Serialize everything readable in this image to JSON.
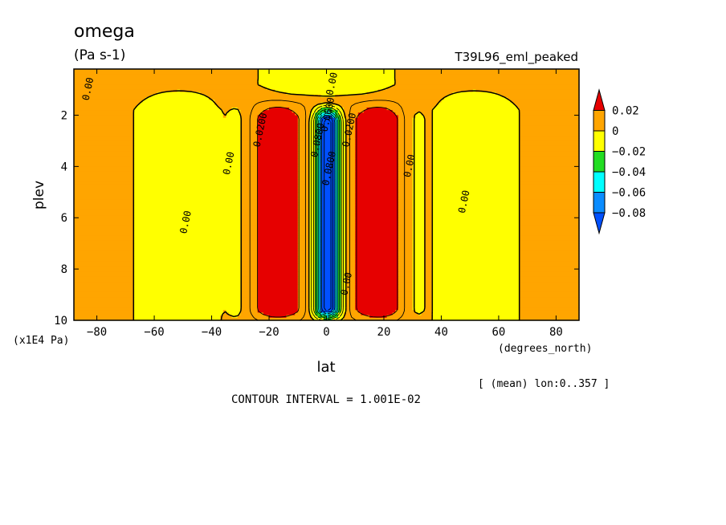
{
  "chart_data": {
    "type": "heatmap",
    "title": "omega",
    "units": "(Pa s-1)",
    "experiment": "T39L96_eml_peaked",
    "xlabel": "lat",
    "xunits": "(degrees_north)",
    "ylabel": "plev",
    "yunits": "(x1E4 Pa)",
    "xlim": [
      -88,
      88
    ],
    "ylim": [
      0.2,
      10
    ],
    "yinverted": true,
    "xticks": [
      -80,
      -60,
      -40,
      -20,
      0,
      20,
      40,
      60,
      80
    ],
    "xtick_labels": [
      "−80",
      "−60",
      "−40",
      "−20",
      "0",
      "20",
      "40",
      "60",
      "80"
    ],
    "yticks": [
      2,
      4,
      6,
      8,
      10
    ],
    "ytick_labels": [
      "2",
      "4",
      "6",
      "8",
      "10"
    ],
    "averaging_note": "[ (mean) lon:0..357 ]",
    "contour_interval": "CONTOUR INTERVAL = 1.001E-02",
    "colorbar": {
      "levels": [
        0.02,
        0,
        -0.02,
        -0.04,
        -0.06,
        -0.08
      ],
      "labels": [
        "0.02",
        "0",
        "−0.02",
        "−0.04",
        "−0.06",
        "−0.08"
      ],
      "colors": [
        "#e60000",
        "#ffa500",
        "#ffff00",
        "#22dd22",
        "#00ffff",
        "#0a8cff",
        "#0050ff"
      ]
    },
    "contour_labels": [
      {
        "text": "0.00",
        "x": -82,
        "y": 1.0
      },
      {
        "text": "0.00",
        "x": 3,
        "y": 0.8
      },
      {
        "text": "0.0200",
        "x": -22,
        "y": 2.6
      },
      {
        "text": "0.00",
        "x": -33,
        "y": 3.9
      },
      {
        "text": "0.00",
        "x": -48,
        "y": 6.2
      },
      {
        "text": "0.00",
        "x": 30,
        "y": 4.0
      },
      {
        "text": "0.00",
        "x": 49,
        "y": 5.4
      },
      {
        "text": "0.0200",
        "x": 9,
        "y": 2.6
      },
      {
        "text": "0.0600",
        "x": 1.5,
        "y": 2.0
      },
      {
        "text": "0.0800",
        "x": -2,
        "y": 3.0
      },
      {
        "text": "0.0800",
        "x": 2,
        "y": 4.1
      },
      {
        "text": "0.00",
        "x": 8,
        "y": 8.6
      }
    ],
    "fields": {
      "background_value": 0.005,
      "yellow_columns_south_lat": [
        -75,
        -32
      ],
      "yellow_columns_north_lat": [
        32,
        75
      ],
      "red_cells_lat": [
        [
          -27,
          -8
        ],
        [
          9,
          28
        ]
      ],
      "red_cells_plev": [
        1.9,
        9.8
      ],
      "blue_core_lat": [
        -3,
        3.5
      ],
      "blue_core_plev": [
        1.6,
        9.9
      ],
      "min_value": -0.08,
      "max_value": 0.02
    }
  }
}
